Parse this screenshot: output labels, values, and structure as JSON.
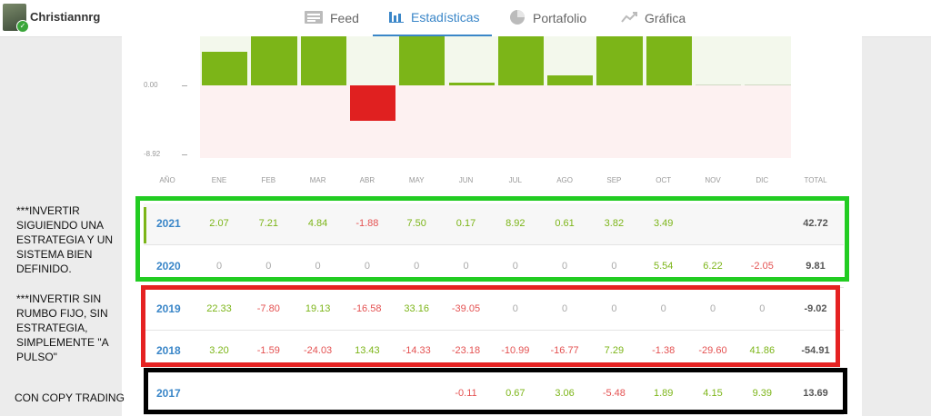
{
  "user": {
    "name": "Christiannrg"
  },
  "tabs": [
    {
      "label": "Feed",
      "icon": "feed-icon"
    },
    {
      "label": "Estadísticas",
      "icon": "bar-chart-icon",
      "active": true
    },
    {
      "label": "Portafolio",
      "icon": "pie-chart-icon"
    },
    {
      "label": "Gráfica",
      "icon": "line-chart-icon"
    }
  ],
  "chart_data": {
    "type": "bar",
    "categories": [
      "ENE",
      "FEB",
      "MAR",
      "ABR",
      "MAY",
      "JUN",
      "JUL",
      "AGO",
      "SEP",
      "OCT",
      "NOV",
      "DIC"
    ],
    "values": [
      2.07,
      7.21,
      4.84,
      -1.88,
      7.5,
      0.17,
      8.92,
      0.61,
      3.82,
      3.49,
      0,
      0
    ],
    "ytick_labels": [
      "0.00",
      "-8.92"
    ],
    "ylim": [
      -8.92,
      8.92
    ],
    "colors": {
      "positive": "#7cb518",
      "negative": "#e02020"
    }
  },
  "table": {
    "headers": [
      "AÑO",
      "ENE",
      "FEB",
      "MAR",
      "ABR",
      "MAY",
      "JUN",
      "JUL",
      "AGO",
      "SEP",
      "OCT",
      "NOV",
      "DIC",
      "TOTAL"
    ],
    "rows": [
      {
        "year": "2021",
        "cells": [
          "2.07",
          "7.21",
          "4.84",
          "-1.88",
          "7.50",
          "0.17",
          "8.92",
          "0.61",
          "3.82",
          "3.49",
          "",
          ""
        ],
        "total": "42.72"
      },
      {
        "year": "2020",
        "cells": [
          "0",
          "0",
          "0",
          "0",
          "0",
          "0",
          "0",
          "0",
          "0",
          "5.54",
          "6.22",
          "-2.05"
        ],
        "total": "9.81"
      },
      {
        "year": "2019",
        "cells": [
          "22.33",
          "-7.80",
          "19.13",
          "-16.58",
          "33.16",
          "-39.05",
          "0",
          "0",
          "0",
          "0",
          "0",
          "0"
        ],
        "total": "-9.02"
      },
      {
        "year": "2018",
        "cells": [
          "3.20",
          "-1.59",
          "-24.03",
          "13.43",
          "-14.33",
          "-23.18",
          "-10.99",
          "-16.77",
          "7.29",
          "-1.38",
          "-29.60",
          "41.86"
        ],
        "total": "-54.91"
      },
      {
        "year": "2017",
        "cells": [
          "",
          "",
          "",
          "",
          "",
          "-0.11",
          "0.67",
          "3.06",
          "-5.48",
          "1.89",
          "4.15",
          "9.39"
        ],
        "total": "13.69"
      }
    ]
  },
  "notes": {
    "green": "***INVERTIR SIGUIENDO UNA ESTRATEGIA Y UN SISTEMA BIEN DEFINIDO.",
    "red": "***INVERTIR SIN RUMBO FIJO, SIN ESTRATEGIA, SIMPLEMENTE \"A PULSO\"",
    "black": "CON COPY TRADING"
  },
  "annotation_colors": {
    "green": "#22cc22",
    "red": "#e52222",
    "black": "#000000"
  }
}
